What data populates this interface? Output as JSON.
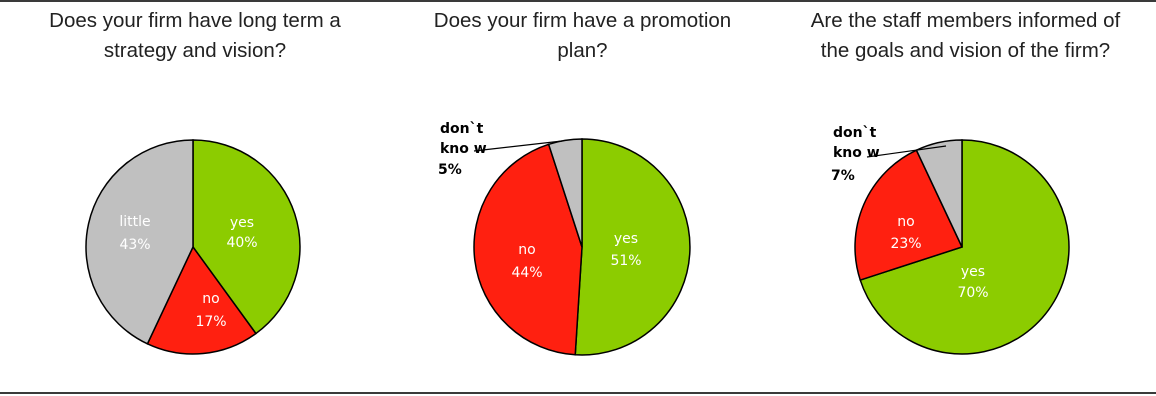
{
  "chart_data": [
    {
      "type": "pie",
      "title_lines": [
        "Does your firm have long term a",
        "strategy and vision?"
      ],
      "slices": [
        {
          "label": "yes",
          "value": 40,
          "pct_label": "40%",
          "color": "#8ccc00"
        },
        {
          "label": "no",
          "value": 17,
          "pct_label": "17%",
          "color": "#ff2010"
        },
        {
          "label": "little",
          "value": 43,
          "pct_label": "43%",
          "color": "#c0c0c0"
        }
      ]
    },
    {
      "type": "pie",
      "title_lines": [
        "Does your firm have a promotion",
        "plan?"
      ],
      "slices": [
        {
          "label": "yes",
          "value": 51,
          "pct_label": "51%",
          "color": "#8ccc00"
        },
        {
          "label": "no",
          "value": 44,
          "pct_label": "44%",
          "color": "#ff2010"
        },
        {
          "label": "don`t kno w",
          "value": 5,
          "pct_label": "5%",
          "color": "#c0c0c0"
        }
      ]
    },
    {
      "type": "pie",
      "title_lines": [
        "Are the staff members informed of",
        "the goals and vision of the firm?"
      ],
      "slices": [
        {
          "label": "yes",
          "value": 70,
          "pct_label": "70%",
          "color": "#8ccc00"
        },
        {
          "label": "no",
          "value": 23,
          "pct_label": "23%",
          "color": "#ff2010"
        },
        {
          "label": "don`t kno w",
          "value": 7,
          "pct_label": "7%",
          "color": "#c0c0c0"
        }
      ]
    }
  ]
}
